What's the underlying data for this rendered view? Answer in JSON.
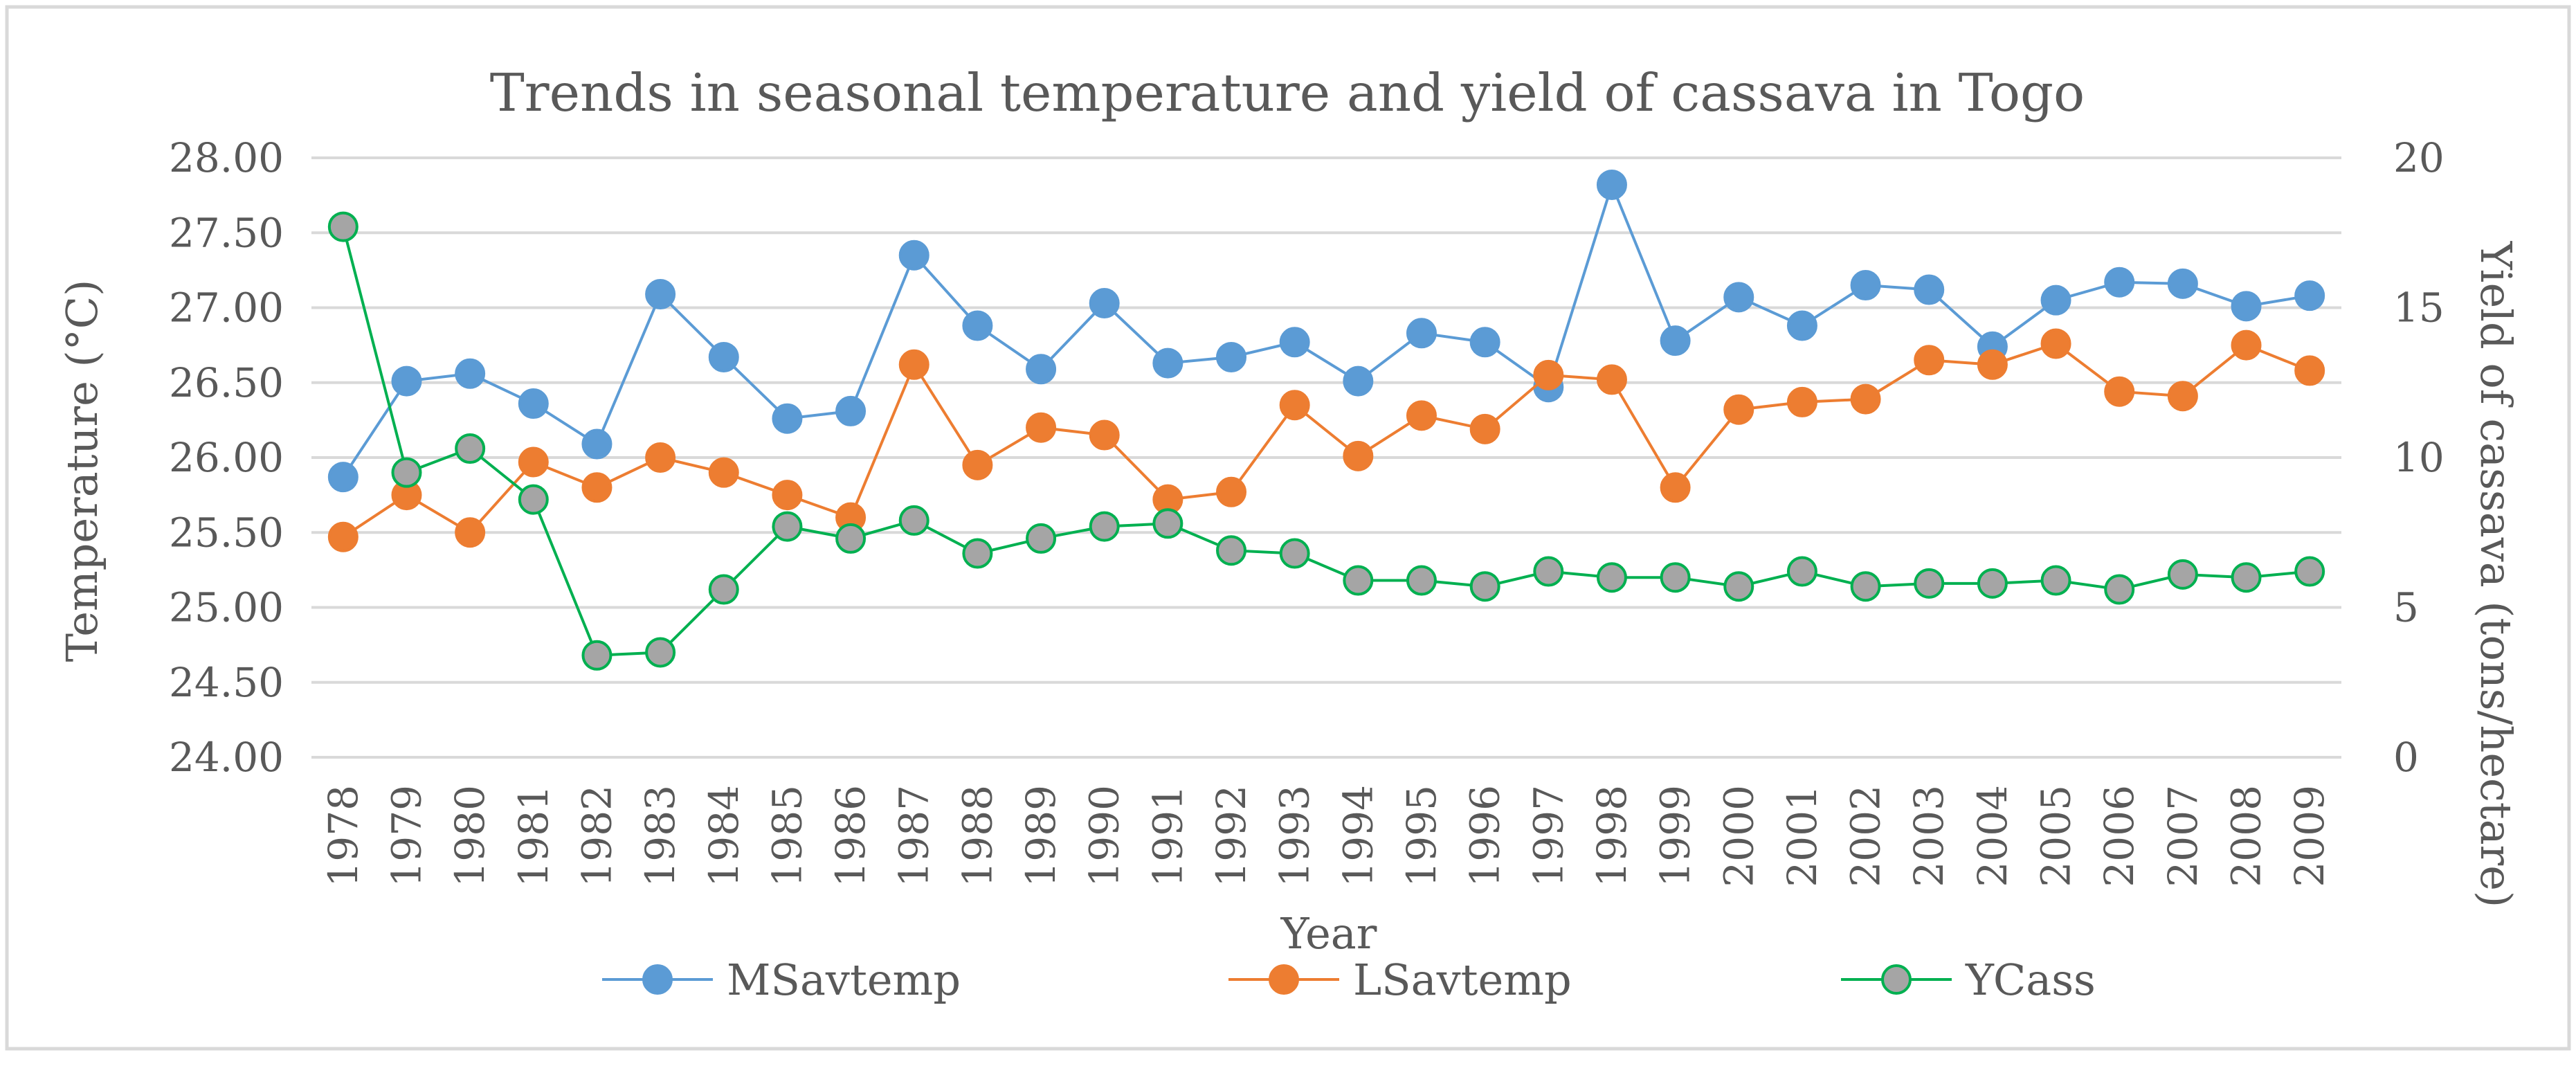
{
  "chart_data": {
    "type": "line",
    "title": "Trends in seasonal temperature and yield of cassava in Togo",
    "xlabel": "Year",
    "ylabel": "Temperature (°C)",
    "y2label": "Yield of cassava (tons/hectare)",
    "ylim": [
      24.0,
      28.0
    ],
    "y2lim": [
      0,
      20
    ],
    "y_ticks": [
      "24.00",
      "24.50",
      "25.00",
      "25.50",
      "26.00",
      "26.50",
      "27.00",
      "27.50",
      "28.00"
    ],
    "y2_ticks": [
      "0",
      "5",
      "10",
      "15",
      "20"
    ],
    "grid": true,
    "legend_position": "bottom",
    "categories": [
      "1978",
      "1979",
      "1980",
      "1981",
      "1982",
      "1983",
      "1984",
      "1985",
      "1986",
      "1987",
      "1988",
      "1989",
      "1990",
      "1991",
      "1992",
      "1993",
      "1994",
      "1995",
      "1996",
      "1997",
      "1998",
      "1999",
      "2000",
      "2001",
      "2002",
      "2003",
      "2004",
      "2005",
      "2006",
      "2007",
      "2008",
      "2009"
    ],
    "series": [
      {
        "name": "MSavtemp",
        "axis": "left",
        "color": "#5B9BD5",
        "values": [
          25.87,
          26.51,
          26.56,
          26.36,
          26.09,
          27.09,
          26.67,
          26.26,
          26.31,
          27.35,
          26.88,
          26.59,
          27.03,
          26.63,
          26.67,
          26.77,
          26.51,
          26.83,
          26.77,
          26.47,
          27.82,
          26.78,
          27.07,
          26.88,
          27.15,
          27.12,
          26.74,
          27.05,
          27.17,
          27.16,
          27.01,
          27.08
        ]
      },
      {
        "name": "LSavtemp",
        "axis": "left",
        "color": "#ED7D31",
        "values": [
          25.47,
          25.75,
          25.5,
          25.97,
          25.8,
          26.0,
          25.9,
          25.75,
          25.6,
          26.62,
          25.95,
          26.2,
          26.15,
          25.72,
          25.77,
          26.35,
          26.01,
          26.28,
          26.19,
          26.55,
          26.52,
          25.8,
          26.32,
          26.37,
          26.39,
          26.65,
          26.62,
          26.76,
          26.44,
          26.41,
          26.75,
          26.58
        ]
      },
      {
        "name": "YCass",
        "axis": "right",
        "color": "#00B050",
        "marker_fill": "#A5A5A5",
        "values": [
          17.7,
          9.5,
          10.3,
          8.6,
          3.4,
          3.5,
          5.6,
          7.7,
          7.3,
          7.9,
          6.8,
          7.3,
          7.7,
          7.8,
          6.9,
          6.8,
          5.9,
          5.9,
          5.7,
          6.2,
          6.0,
          6.0,
          5.7,
          6.2,
          5.7,
          5.8,
          5.8,
          5.9,
          5.6,
          6.1,
          6.0,
          6.2
        ]
      }
    ]
  }
}
